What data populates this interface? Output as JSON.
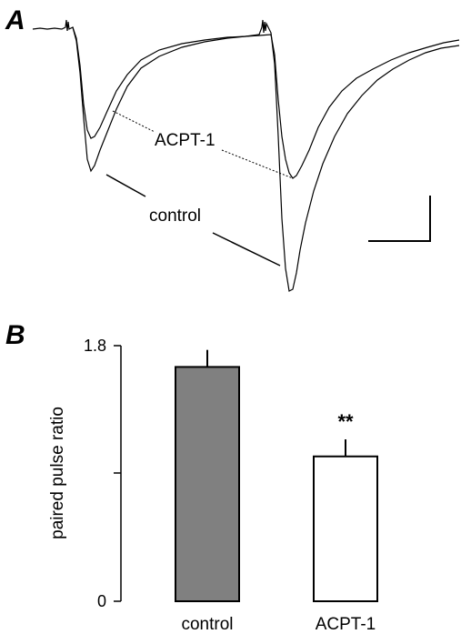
{
  "panel_a": {
    "letter": "A",
    "trace_labels": {
      "acpt": "ACPT-1",
      "control": "control"
    }
  },
  "panel_b": {
    "letter": "B"
  },
  "chart_data": [
    {
      "type": "line",
      "title": "",
      "description_series": [
        {
          "name": "control",
          "shape": "two-pulse EPSC, larger second response"
        },
        {
          "name": "ACPT-1",
          "shape": "two-pulse EPSC, second response similar to first"
        }
      ],
      "labels": [
        "ACPT-1",
        "control"
      ],
      "scale_bar": true
    },
    {
      "type": "bar",
      "categories": [
        "control",
        "ACPT-1"
      ],
      "values": [
        1.65,
        1.02
      ],
      "errors": [
        0.12,
        0.12
      ],
      "fill_colors": [
        "#808080",
        "#ffffff"
      ],
      "significance": [
        "",
        "**"
      ],
      "ylabel": "paired pulse ratio",
      "ylim": [
        0,
        1.8
      ],
      "yticks": [
        0,
        0.9,
        1.8
      ],
      "ytick_labels": [
        "0",
        "",
        "1.8"
      ],
      "grid": false
    }
  ]
}
